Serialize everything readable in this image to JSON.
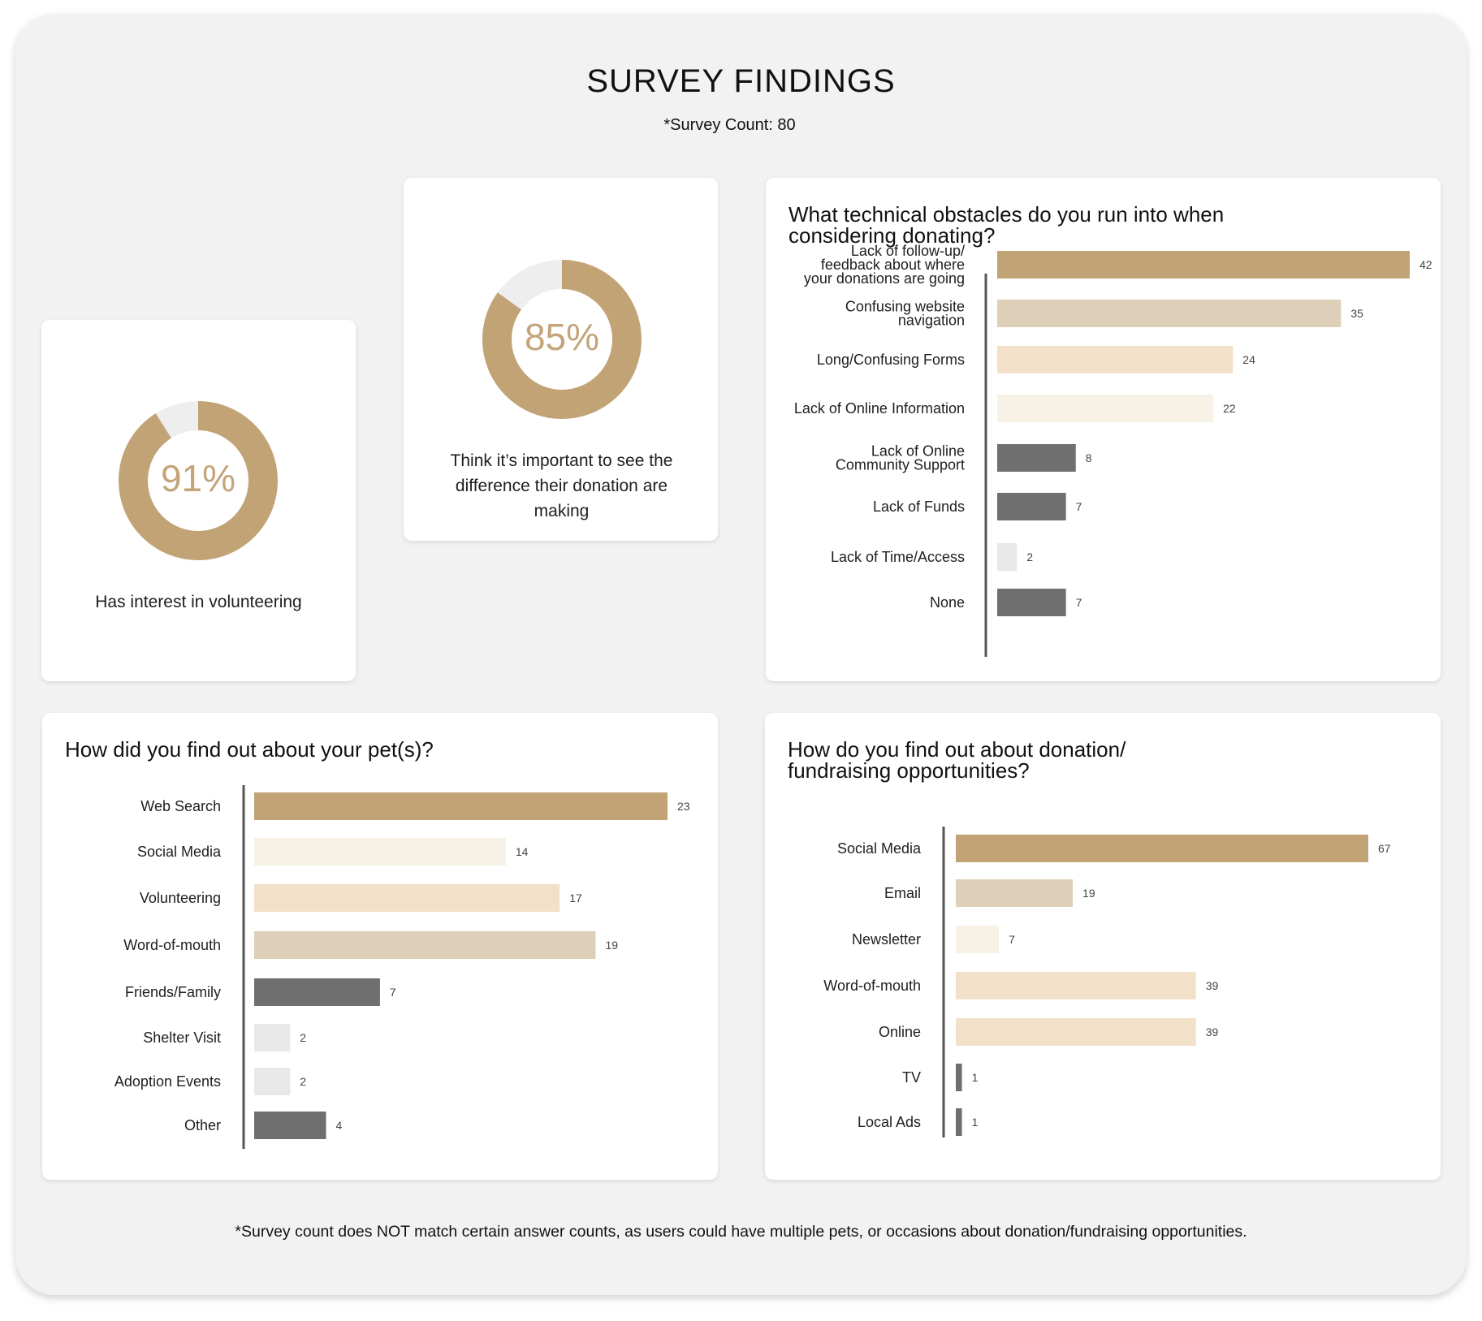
{
  "header": {
    "title": "SURVEY FINDINGS",
    "subtitle": "*Survey Count: 80"
  },
  "stats": [
    {
      "value": "91%",
      "fraction": 0.91,
      "caption": "Has interest in volunteering"
    },
    {
      "value": "85%",
      "fraction": 0.85,
      "caption": "Think it’s important to see the difference their donation are making"
    }
  ],
  "colors": {
    "gold": "#c2a376",
    "sand": "#ded0b8",
    "peach": "#f2e1c8",
    "cream": "#f8f1e6",
    "dark_gray": "#6f6f6f",
    "light_gray": "#e8e8e8",
    "donut_track": "#eeeeee"
  },
  "chart_data": [
    {
      "type": "bar",
      "orientation": "horizontal",
      "title": "What technical obstacles do you run into when considering donating?",
      "categories": [
        "Lack of follow-up/ feedback about where your donations are going",
        "Confusing website navigation",
        "Long/Confusing Forms",
        "Lack of Online Information",
        "Lack of Online Community Support",
        "Lack of Funds",
        "Lack of Time/Access",
        "None"
      ],
      "values": [
        42,
        35,
        24,
        22,
        8,
        7,
        2,
        7
      ],
      "bar_colors": [
        "#c2a376",
        "#ded0b8",
        "#f2e1c8",
        "#f8f1e6",
        "#6f6f6f",
        "#6f6f6f",
        "#e8e8e8",
        "#6f6f6f"
      ],
      "xlim": [
        0,
        42
      ]
    },
    {
      "type": "bar",
      "orientation": "horizontal",
      "title": "How did you find out about your pet(s)?",
      "categories": [
        "Web Search",
        "Social Media",
        "Volunteering",
        "Word-of-mouth",
        "Friends/Family",
        "Shelter Visit",
        "Adoption Events",
        "Other"
      ],
      "values": [
        23,
        14,
        17,
        19,
        7,
        2,
        2,
        4
      ],
      "bar_colors": [
        "#c2a376",
        "#f8f1e6",
        "#f2e1c8",
        "#ded0b8",
        "#6f6f6f",
        "#e8e8e8",
        "#e8e8e8",
        "#6f6f6f"
      ],
      "xlim": [
        0,
        23
      ]
    },
    {
      "type": "bar",
      "orientation": "horizontal",
      "title": "How do you find out about donation/ fundraising opportunities?",
      "categories": [
        "Social Media",
        "Email",
        "Newsletter",
        "Word-of-mouth",
        "Online",
        "TV",
        "Local Ads"
      ],
      "values": [
        67,
        19,
        7,
        39,
        39,
        1,
        1
      ],
      "bar_colors": [
        "#c2a376",
        "#ded0b8",
        "#f8f1e6",
        "#f2e1c8",
        "#f2e1c8",
        "#6f6f6f",
        "#6f6f6f"
      ],
      "xlim": [
        0,
        67
      ]
    }
  ],
  "footer": {
    "note": "*Survey count does NOT match certain answer counts, as users could have multiple pets, or occasions about donation/fundraising opportunities."
  }
}
